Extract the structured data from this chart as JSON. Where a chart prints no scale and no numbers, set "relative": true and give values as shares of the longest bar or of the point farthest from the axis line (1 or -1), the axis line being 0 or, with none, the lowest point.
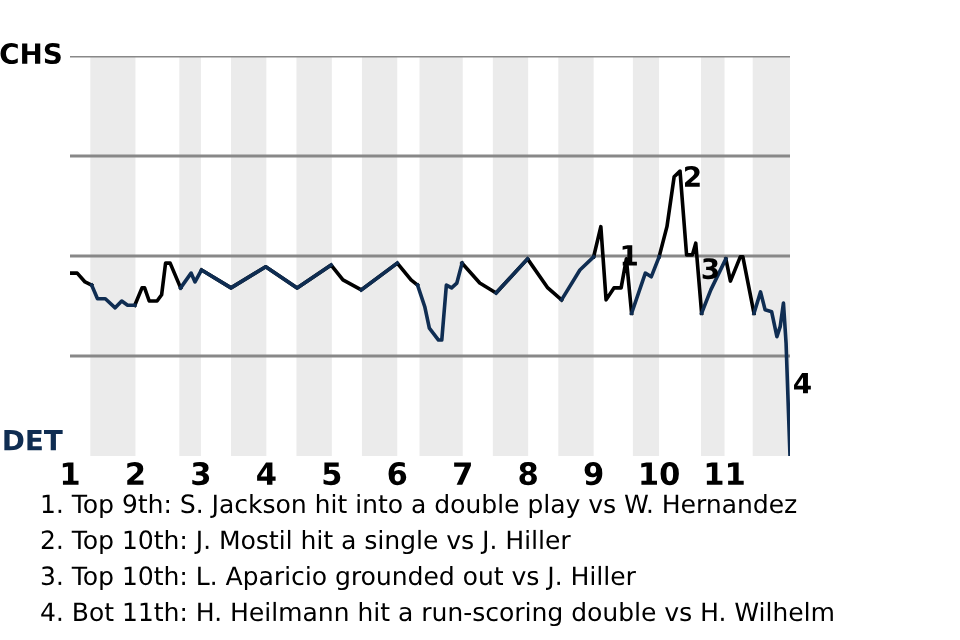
{
  "chart_data": {
    "type": "line",
    "relative": true,
    "x": [
      1.0,
      1.11,
      1.23,
      1.33,
      1.42,
      1.54,
      1.69,
      1.79,
      1.88,
      1.99,
      2.1,
      2.14,
      2.21,
      2.33,
      2.4,
      2.46,
      2.53,
      2.69,
      2.85,
      2.91,
      3.01,
      3.46,
      3.99,
      4.47,
      4.99,
      5.17,
      5.45,
      6.0,
      6.21,
      6.31,
      6.42,
      6.49,
      6.63,
      6.68,
      6.75,
      6.83,
      6.91,
      6.99,
      7.26,
      7.51,
      7.99,
      8.3,
      8.51,
      8.79,
      9.0,
      9.11,
      9.19,
      9.31,
      9.42,
      9.5,
      9.58,
      9.79,
      9.88,
      10.0,
      10.12,
      10.23,
      10.32,
      10.42,
      10.51,
      10.56,
      10.65,
      10.79,
      11.02,
      11.09,
      11.24,
      11.28,
      11.45,
      11.55,
      11.62,
      11.72,
      11.8,
      11.85,
      11.9,
      11.94,
      12.0
    ],
    "series": [
      {
        "color": "#000000",
        "values": [
          0.642,
          0.642,
          0.611,
          0.6,
          null,
          null,
          null,
          null,
          null,
          0.529,
          0.59,
          0.59,
          0.544,
          0.544,
          0.566,
          0.677,
          0.677,
          0.59,
          null,
          null,
          0.653,
          0.59,
          0.664,
          0.59,
          0.67,
          0.618,
          0.583,
          0.677,
          0.618,
          0.6,
          null,
          null,
          null,
          null,
          null,
          null,
          null,
          0.677,
          0.607,
          0.572,
          0.692,
          0.59,
          0.548,
          null,
          0.699,
          0.805,
          0.548,
          0.59,
          0.59,
          0.692,
          0.501,
          null,
          null,
          0.699,
          0.805,
          0.98,
          1,
          0.706,
          0.706,
          0.747,
          0.501,
          null,
          0.692,
          0.614,
          0.699,
          0.699,
          0.501,
          null,
          null,
          null,
          null,
          null,
          null,
          null,
          null
        ]
      },
      {
        "color": "#0f2d52",
        "values": [
          null,
          null,
          null,
          0.6,
          0.552,
          0.552,
          0.52,
          0.544,
          0.529,
          0.529,
          null,
          null,
          null,
          null,
          null,
          null,
          null,
          0.59,
          0.642,
          0.611,
          0.653,
          0.59,
          0.664,
          0.59,
          0.67,
          null,
          0.583,
          0.677,
          null,
          0.6,
          0.524,
          0.449,
          0.407,
          0.407,
          0.6,
          0.59,
          0.607,
          0.677,
          null,
          0.572,
          0.692,
          null,
          0.548,
          0.653,
          0.699,
          null,
          null,
          null,
          null,
          null,
          0.501,
          0.642,
          0.629,
          0.699,
          null,
          null,
          null,
          null,
          null,
          null,
          0.501,
          0.583,
          0.692,
          null,
          null,
          null,
          0.501,
          0.576,
          0.513,
          0.506,
          0.419,
          0.454,
          0.537,
          0.396,
          0
        ]
      }
    ],
    "xlim": [
      1,
      12
    ],
    "xticks": [
      1,
      2,
      3,
      4,
      5,
      6,
      7,
      8,
      9,
      10,
      11
    ],
    "grid": false,
    "ref_lines": [
      {
        "axis": "y",
        "value": 0.351,
        "color": "#888888"
      },
      {
        "axis": "y",
        "value": 0.702,
        "color": "#888888"
      },
      {
        "axis": "y",
        "value": 1.053,
        "color": "#888888"
      },
      {
        "axis": "y",
        "value": 1.404,
        "color": "#888888"
      }
    ],
    "bands": [
      {
        "axis": "x",
        "from": 1.31,
        "to": 2,
        "color": "#ebebeb"
      },
      {
        "axis": "x",
        "from": 2.67,
        "to": 3,
        "color": "#ebebeb"
      },
      {
        "axis": "x",
        "from": 3.46,
        "to": 4,
        "color": "#ebebeb"
      },
      {
        "axis": "x",
        "from": 4.46,
        "to": 5,
        "color": "#ebebeb"
      },
      {
        "axis": "x",
        "from": 5.46,
        "to": 6,
        "color": "#ebebeb"
      },
      {
        "axis": "x",
        "from": 6.34,
        "to": 7,
        "color": "#ebebeb"
      },
      {
        "axis": "x",
        "from": 7.46,
        "to": 8,
        "color": "#ebebeb"
      },
      {
        "axis": "x",
        "from": 8.46,
        "to": 9,
        "color": "#ebebeb"
      },
      {
        "axis": "x",
        "from": 9.6,
        "to": 10,
        "color": "#ebebeb"
      },
      {
        "axis": "x",
        "from": 10.64,
        "to": 11,
        "color": "#ebebeb"
      },
      {
        "axis": "x",
        "from": 11.43,
        "to": 12,
        "color": "#ebebeb"
      }
    ],
    "annotations": [
      {
        "text": "1",
        "x": 9.31,
        "y": 0.59
      },
      {
        "text": "2",
        "x": 10.32,
        "y": 1
      },
      {
        "text": "3",
        "x": 10.51,
        "y": 0.706
      },
      {
        "text": "4",
        "x": 12,
        "y": 0.2
      },
      "CHS",
      "DET",
      "1. Top 9th: S. Jackson hit into a double play vs W. Hernandez",
      "2. Top 10th: J. Mostil hit a single vs J. Hiller",
      "3. Top 10th: L. Aparicio grounded out vs J. Hiller",
      "4. Bot 11th: H. Heilmann hit a run-scoring double vs H. Wilhelm"
    ]
  }
}
